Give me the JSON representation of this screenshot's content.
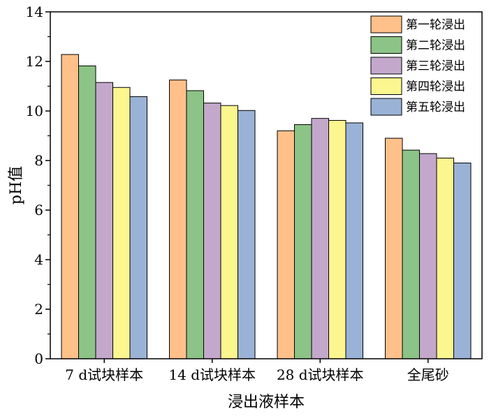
{
  "chart_data": {
    "type": "bar",
    "xlabel": "浸出液样本",
    "ylabel": "pH值",
    "ylim": [
      0,
      14
    ],
    "yticks": [
      0,
      2,
      4,
      6,
      8,
      10,
      12,
      14
    ],
    "categories": [
      "7 d试块样本",
      "14 d试块样本",
      "28 d试块样本",
      "全尾砂"
    ],
    "series": [
      {
        "name": "第一轮浸出",
        "color": "#ffc08a",
        "values": [
          12.28,
          11.25,
          9.2,
          8.9
        ]
      },
      {
        "name": "第二轮浸出",
        "color": "#8cc386",
        "values": [
          11.82,
          10.82,
          9.45,
          8.42
        ]
      },
      {
        "name": "第三轮浸出",
        "color": "#c4a8cc",
        "values": [
          11.15,
          10.32,
          9.7,
          8.28
        ]
      },
      {
        "name": "第四轮浸出",
        "color": "#fbf68e",
        "values": [
          10.95,
          10.22,
          9.62,
          8.1
        ]
      },
      {
        "name": "第五轮浸出",
        "color": "#9ab2d6",
        "values": [
          10.58,
          10.02,
          9.52,
          7.9
        ]
      }
    ],
    "legend_position": "top-right",
    "grid": false
  }
}
